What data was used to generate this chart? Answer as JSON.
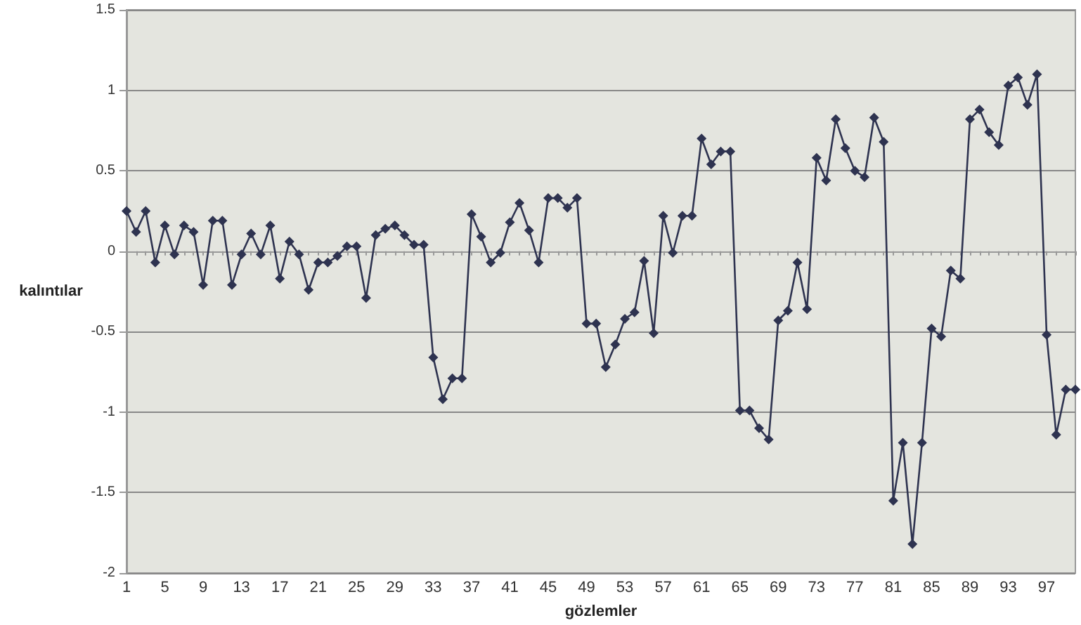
{
  "chart_data": {
    "type": "line",
    "xlabel": "gözlemler",
    "ylabel": "kalıntılar",
    "categories": [
      "1",
      null,
      null,
      null,
      "5",
      null,
      null,
      null,
      "9",
      null,
      null,
      null,
      "13",
      null,
      null,
      null,
      "17",
      null,
      null,
      null,
      "21",
      null,
      null,
      null,
      "25",
      null,
      null,
      null,
      "29",
      null,
      null,
      null,
      "33",
      null,
      null,
      null,
      "37",
      null,
      null,
      null,
      "41",
      null,
      null,
      null,
      "45",
      null,
      null,
      null,
      "49",
      null,
      null,
      null,
      "53",
      null,
      null,
      null,
      "57",
      null,
      null,
      null,
      "61",
      null,
      null,
      null,
      "65",
      null,
      null,
      null,
      "69",
      null,
      null,
      null,
      "73",
      null,
      null,
      null,
      "77",
      null,
      null,
      null,
      "81",
      null,
      null,
      null,
      "85",
      null,
      null,
      null,
      "89",
      null,
      null,
      null,
      "93",
      null,
      null,
      null,
      "97",
      null,
      null,
      null
    ],
    "series": [
      {
        "color": "#2e3350",
        "values": [
          0.25,
          0.12,
          0.25,
          -0.07,
          0.16,
          -0.02,
          0.16,
          0.12,
          -0.21,
          0.19,
          0.19,
          -0.21,
          -0.02,
          0.11,
          -0.02,
          0.16,
          -0.17,
          0.06,
          -0.02,
          -0.24,
          -0.07,
          -0.07,
          -0.03,
          0.03,
          0.03,
          -0.29,
          0.1,
          0.14,
          0.16,
          0.1,
          0.04,
          0.04,
          -0.66,
          -0.92,
          -0.79,
          -0.79,
          0.23,
          0.09,
          -0.07,
          -0.01,
          0.18,
          0.3,
          0.13,
          -0.07,
          0.33,
          0.33,
          0.27,
          0.33,
          -0.45,
          -0.45,
          -0.72,
          -0.58,
          -0.42,
          -0.38,
          -0.06,
          -0.51,
          0.22,
          -0.01,
          0.22,
          0.22,
          0.7,
          0.54,
          0.62,
          0.62,
          -0.99,
          -0.99,
          -1.1,
          -1.17,
          -0.43,
          -0.37,
          -0.07,
          -0.36,
          0.58,
          0.44,
          0.82,
          0.64,
          0.5,
          0.46,
          0.83,
          0.68,
          -1.55,
          -1.19,
          -1.82,
          -1.19,
          -0.48,
          -0.53,
          -0.12,
          -0.17,
          0.82,
          0.88,
          0.74,
          0.66,
          1.03,
          1.08,
          0.91,
          1.1,
          -0.52,
          -1.14,
          -0.86,
          -0.86
        ]
      }
    ],
    "ylim": [
      -2,
      1.5
    ],
    "yticks": [
      -2,
      -1.5,
      -1,
      -0.5,
      0,
      0.5,
      1,
      1.5
    ],
    "grid": "y",
    "marker": "diamond",
    "line_style": "solid"
  }
}
